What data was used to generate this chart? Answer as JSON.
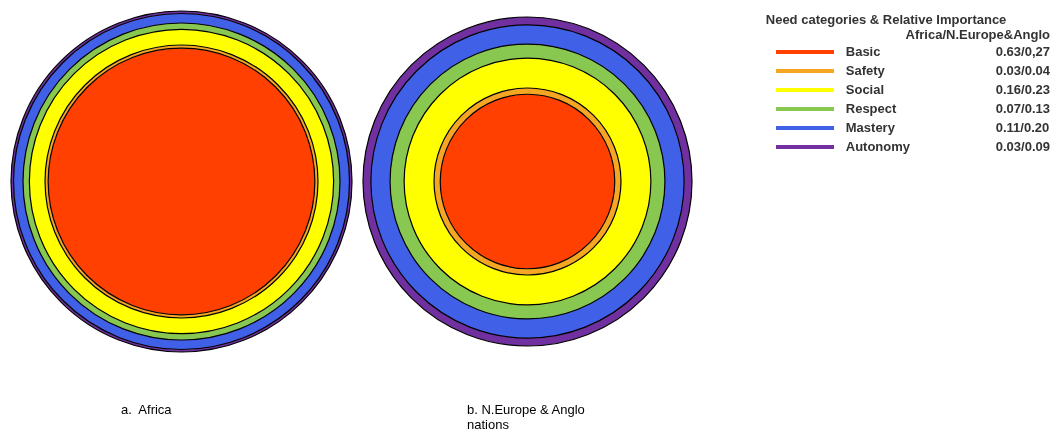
{
  "chart_data": {
    "type": "other",
    "legend_title": "Need categories & Relative Importance",
    "annotations": [
      "Africa/N.Europe&Anglo"
    ],
    "categories": [
      "Basic",
      "Safety",
      "Social",
      "Respect",
      "Mastery",
      "Autonomy"
    ],
    "colors": [
      "#ff4000",
      "#f5a623",
      "#ffff00",
      "#88c850",
      "#4060e8",
      "#7030a0"
    ],
    "series": [
      {
        "name": "a.  Africa",
        "values": [
          0.63,
          0.03,
          0.16,
          0.07,
          0.11,
          0.03
        ],
        "value_labels": [
          "0.63",
          "0.03",
          "0.16",
          "0.07",
          "0.11",
          "0.03"
        ]
      },
      {
        "name": "b. N.Europe & Anglo nations",
        "values": [
          0.27,
          0.04,
          0.23,
          0.13,
          0.2,
          0.09
        ],
        "value_labels": [
          "/0,27",
          "/0.04",
          "/0.23",
          "/0.13",
          "/0.20",
          "/0.09"
        ]
      }
    ]
  }
}
